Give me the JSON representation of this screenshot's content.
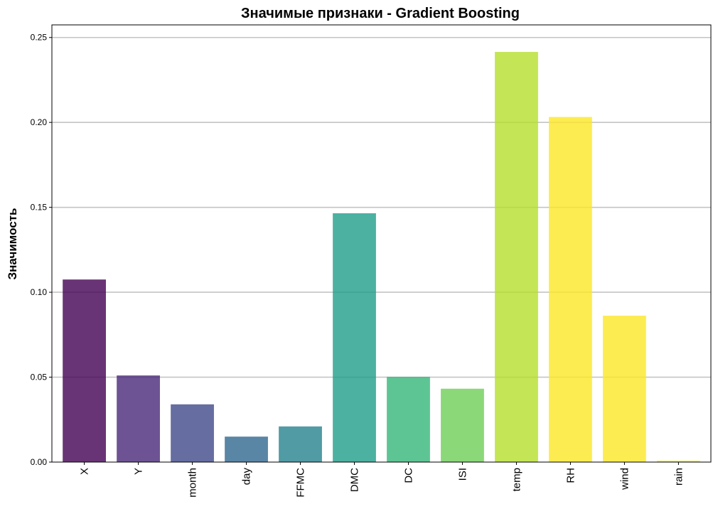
{
  "chart_data": {
    "type": "bar",
    "title": "Значимые признаки - Gradient Boosting",
    "xlabel": "",
    "ylabel": "Значимость",
    "categories": [
      "X",
      "Y",
      "month",
      "day",
      "FFMC",
      "DMC",
      "DC",
      "ISI",
      "temp",
      "RH",
      "wind",
      "rain"
    ],
    "values": [
      0.1075,
      0.051,
      0.034,
      0.015,
      0.021,
      0.1465,
      0.0502,
      0.0432,
      0.2415,
      0.2032,
      0.0862,
      0.0008
    ],
    "colors": [
      "#440154",
      "#482878",
      "#3e4989",
      "#31688e",
      "#26828e",
      "#1f9e89",
      "#35b779",
      "#6ece58",
      "#b5de2b",
      "#fde725",
      "#fde725",
      "#fde725"
    ],
    "ylim": [
      0,
      0.25
    ],
    "yticks": [
      "0.00",
      "0.05",
      "0.10",
      "0.15",
      "0.20",
      "0.25"
    ],
    "grid": "horizontal",
    "legend": "none"
  }
}
